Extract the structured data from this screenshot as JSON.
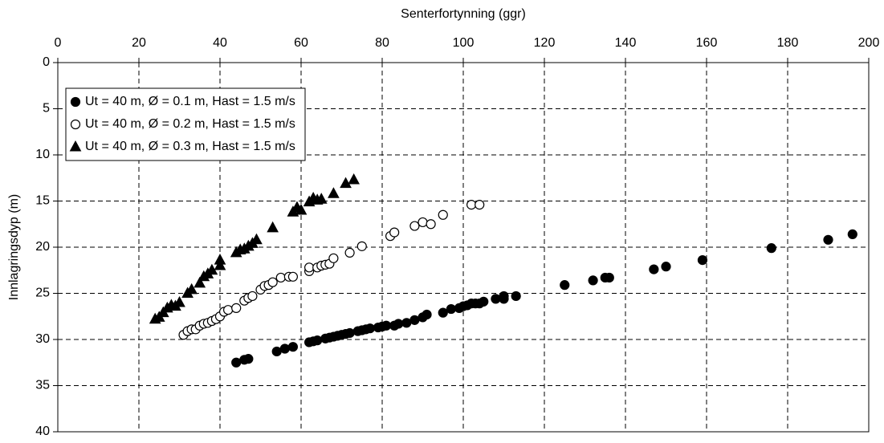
{
  "chart_data": {
    "type": "scatter",
    "x_label": "Senterfortynning (ggr)",
    "y_label": "Innlagringsdyp (m)",
    "xlim": [
      0,
      200
    ],
    "xticks": [
      0,
      20,
      40,
      60,
      80,
      100,
      120,
      140,
      160,
      180,
      200
    ],
    "ylim": [
      0,
      40
    ],
    "yticks": [
      0,
      5,
      10,
      15,
      20,
      25,
      30,
      35,
      40
    ],
    "y_inverted": true,
    "x_axis_position": "top",
    "grid": true,
    "legend": "upper-left",
    "series": [
      {
        "name": "Ut = 40 m, Ø = 0.1 m, Hast = 1.5 m/s",
        "color": "#000000",
        "marker": "circle",
        "filled": true,
        "x": [
          44,
          46,
          47,
          54,
          56,
          58,
          62,
          63,
          64,
          66,
          67,
          68,
          69,
          70,
          71,
          72,
          74,
          75,
          76,
          77,
          79,
          80,
          81,
          83,
          84,
          86,
          88,
          90,
          91,
          95,
          97,
          99,
          100,
          101,
          102,
          103,
          104,
          105,
          108,
          110,
          110,
          113,
          125,
          132,
          135,
          136,
          147,
          150,
          159,
          176,
          190,
          196
        ],
        "values": [
          32.5,
          32.2,
          32.1,
          31.3,
          31.0,
          30.8,
          30.3,
          30.2,
          30.1,
          29.9,
          29.8,
          29.7,
          29.6,
          29.5,
          29.4,
          29.3,
          29.1,
          29.0,
          28.9,
          28.8,
          28.7,
          28.6,
          28.5,
          28.5,
          28.3,
          28.2,
          27.9,
          27.6,
          27.3,
          27.1,
          26.7,
          26.6,
          26.4,
          26.3,
          26.1,
          26.1,
          26.1,
          25.9,
          25.6,
          25.6,
          25.3,
          25.3,
          24.1,
          23.6,
          23.3,
          23.3,
          22.4,
          22.1,
          21.4,
          20.1,
          19.2,
          18.6
        ]
      },
      {
        "name": "Ut = 40 m, Ø = 0.2 m, Hast = 1.5 m/s",
        "color": "#000000",
        "marker": "circle",
        "filled": false,
        "x": [
          31,
          32,
          33,
          34,
          35,
          36,
          37,
          38,
          39,
          40,
          41,
          42,
          44,
          46,
          47,
          48,
          50,
          51,
          52,
          53,
          55,
          57,
          58,
          62,
          62,
          64,
          65,
          66,
          67,
          68,
          72,
          75,
          82,
          83,
          88,
          90,
          92,
          95,
          102,
          104
        ],
        "values": [
          29.5,
          29.1,
          28.9,
          28.9,
          28.5,
          28.3,
          28.2,
          28.0,
          27.8,
          27.5,
          27.0,
          26.8,
          26.6,
          25.8,
          25.5,
          25.3,
          24.6,
          24.2,
          24.1,
          23.8,
          23.3,
          23.2,
          23.2,
          22.6,
          22.2,
          22.2,
          22.0,
          21.9,
          21.8,
          21.2,
          20.6,
          19.9,
          18.8,
          18.4,
          17.7,
          17.3,
          17.5,
          16.5,
          15.4,
          15.4
        ]
      },
      {
        "name": "Ut = 40 m, Ø = 0.3 m, Hast = 1.5 m/s",
        "color": "#000000",
        "marker": "triangle",
        "filled": true,
        "x": [
          24,
          25,
          26,
          27,
          28,
          29,
          30,
          32,
          33,
          35,
          36,
          37,
          38,
          40,
          40,
          44,
          45,
          46,
          47,
          48,
          49,
          53,
          58,
          59,
          60,
          62,
          63,
          64,
          65,
          68,
          71,
          73
        ],
        "values": [
          27.8,
          27.6,
          27.1,
          26.6,
          26.3,
          26.4,
          26.0,
          25.0,
          24.6,
          23.9,
          23.2,
          22.9,
          22.5,
          22.0,
          21.4,
          20.6,
          20.3,
          20.2,
          19.9,
          19.6,
          19.2,
          17.9,
          16.2,
          15.7,
          16.0,
          15.1,
          14.7,
          14.9,
          14.8,
          14.2,
          13.1,
          12.7
        ]
      }
    ]
  }
}
